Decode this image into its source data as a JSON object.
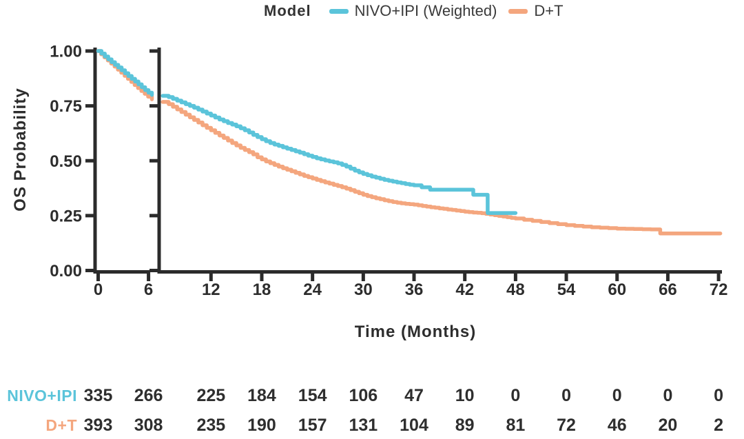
{
  "figure": {
    "legend": {
      "title": "Model",
      "items": [
        {
          "label": "NIVO+IPI (Weighted)",
          "color": "#5bc4da"
        },
        {
          "label": "D+T",
          "color": "#f4a67e"
        }
      ]
    },
    "colors": {
      "axis": "#2b2b2b",
      "text": "#2d2d2d"
    }
  },
  "chart_data": {
    "type": "line",
    "style": "kaplan-meier-step",
    "title": "",
    "xlabel": "Time (Months)",
    "ylabel": "OS Probability",
    "x_ticks": [
      0,
      6,
      12,
      18,
      24,
      30,
      36,
      42,
      48,
      54,
      60,
      66,
      72
    ],
    "x_axis_break_after": 6,
    "y_ticks": [
      0,
      0.25,
      0.5,
      0.75,
      1
    ],
    "y_tick_labels": [
      "0.00",
      "0.25",
      "0.50",
      "0.75",
      "1.00"
    ],
    "ylim": [
      0,
      1
    ],
    "legend_position": "top",
    "grid": false,
    "series": [
      {
        "name": "NIVO+IPI (Weighted)",
        "color": "#5bc4da",
        "segment1": [
          [
            0,
            1.0
          ],
          [
            0.4,
            0.988
          ],
          [
            0.8,
            0.975
          ],
          [
            1.2,
            0.962
          ],
          [
            1.6,
            0.949
          ],
          [
            2,
            0.937
          ],
          [
            2.4,
            0.925
          ],
          [
            2.8,
            0.912
          ],
          [
            3.2,
            0.899
          ],
          [
            3.6,
            0.886
          ],
          [
            4,
            0.873
          ],
          [
            4.4,
            0.861
          ],
          [
            4.8,
            0.848
          ],
          [
            5.2,
            0.835
          ],
          [
            5.6,
            0.822
          ],
          [
            6,
            0.81
          ],
          [
            6.4,
            0.8
          ]
        ],
        "segment2": [
          [
            6.3,
            0.796
          ],
          [
            7,
            0.79
          ],
          [
            7.5,
            0.782
          ],
          [
            8,
            0.774
          ],
          [
            8.5,
            0.766
          ],
          [
            9,
            0.758
          ],
          [
            9.5,
            0.75
          ],
          [
            10,
            0.742
          ],
          [
            10.5,
            0.733
          ],
          [
            11,
            0.724
          ],
          [
            11.5,
            0.715
          ],
          [
            12,
            0.706
          ],
          [
            12.5,
            0.697
          ],
          [
            13,
            0.688
          ],
          [
            13.5,
            0.68
          ],
          [
            14,
            0.672
          ],
          [
            14.5,
            0.665
          ],
          [
            15,
            0.657
          ],
          [
            15.5,
            0.648
          ],
          [
            16,
            0.639
          ],
          [
            16.5,
            0.629
          ],
          [
            17,
            0.618
          ],
          [
            17.5,
            0.608
          ],
          [
            18,
            0.598
          ],
          [
            18.5,
            0.589
          ],
          [
            19,
            0.581
          ],
          [
            19.5,
            0.574
          ],
          [
            20,
            0.568
          ],
          [
            20.5,
            0.561
          ],
          [
            21,
            0.555
          ],
          [
            21.5,
            0.549
          ],
          [
            22,
            0.543
          ],
          [
            22.5,
            0.537
          ],
          [
            23,
            0.53
          ],
          [
            23.5,
            0.523
          ],
          [
            24,
            0.517
          ],
          [
            24.5,
            0.511
          ],
          [
            25,
            0.506
          ],
          [
            25.5,
            0.501
          ],
          [
            26,
            0.497
          ],
          [
            26.5,
            0.493
          ],
          [
            27,
            0.488
          ],
          [
            27.5,
            0.481
          ],
          [
            28,
            0.473
          ],
          [
            28.5,
            0.464
          ],
          [
            29,
            0.455
          ],
          [
            29.5,
            0.447
          ],
          [
            30,
            0.44
          ],
          [
            30.5,
            0.434
          ],
          [
            31,
            0.428
          ],
          [
            31.5,
            0.423
          ],
          [
            32,
            0.418
          ],
          [
            32.5,
            0.413
          ],
          [
            33,
            0.409
          ],
          [
            33.5,
            0.405
          ],
          [
            34,
            0.401
          ],
          [
            34.5,
            0.398
          ],
          [
            35,
            0.394
          ],
          [
            35.5,
            0.391
          ],
          [
            36,
            0.388
          ],
          [
            36.9,
            0.379
          ],
          [
            37.9,
            0.368
          ],
          [
            43,
            0.345
          ],
          [
            44.7,
            0.262
          ],
          [
            48,
            0.262
          ]
        ]
      },
      {
        "name": "D+T",
        "color": "#f4a67e",
        "segment1": [
          [
            0,
            1.0
          ],
          [
            0.35,
            0.985
          ],
          [
            0.75,
            0.971
          ],
          [
            1.15,
            0.957
          ],
          [
            1.55,
            0.943
          ],
          [
            1.95,
            0.929
          ],
          [
            2.35,
            0.915
          ],
          [
            2.75,
            0.901
          ],
          [
            3.15,
            0.887
          ],
          [
            3.55,
            0.873
          ],
          [
            3.95,
            0.859
          ],
          [
            4.35,
            0.845
          ],
          [
            4.75,
            0.831
          ],
          [
            5.15,
            0.818
          ],
          [
            5.55,
            0.805
          ],
          [
            5.95,
            0.792
          ],
          [
            6.4,
            0.78
          ]
        ],
        "segment2": [
          [
            6.3,
            0.768
          ],
          [
            7,
            0.758
          ],
          [
            7.5,
            0.746
          ],
          [
            8,
            0.734
          ],
          [
            8.5,
            0.722
          ],
          [
            9,
            0.71
          ],
          [
            9.5,
            0.698
          ],
          [
            10,
            0.686
          ],
          [
            10.5,
            0.674
          ],
          [
            11,
            0.662
          ],
          [
            11.5,
            0.65
          ],
          [
            12,
            0.639
          ],
          [
            12.5,
            0.627
          ],
          [
            13,
            0.615
          ],
          [
            13.5,
            0.604
          ],
          [
            14,
            0.592
          ],
          [
            14.5,
            0.581
          ],
          [
            15,
            0.57
          ],
          [
            15.5,
            0.559
          ],
          [
            16,
            0.549
          ],
          [
            16.5,
            0.539
          ],
          [
            17,
            0.529
          ],
          [
            17.5,
            0.516
          ],
          [
            18,
            0.506
          ],
          [
            18.5,
            0.497
          ],
          [
            19,
            0.489
          ],
          [
            19.5,
            0.481
          ],
          [
            20,
            0.473
          ],
          [
            20.5,
            0.466
          ],
          [
            21,
            0.459
          ],
          [
            21.5,
            0.452
          ],
          [
            22,
            0.445
          ],
          [
            22.5,
            0.438
          ],
          [
            23,
            0.431
          ],
          [
            23.5,
            0.425
          ],
          [
            24,
            0.419
          ],
          [
            24.5,
            0.413
          ],
          [
            25,
            0.407
          ],
          [
            25.5,
            0.401
          ],
          [
            26,
            0.396
          ],
          [
            26.5,
            0.39
          ],
          [
            27,
            0.385
          ],
          [
            27.5,
            0.379
          ],
          [
            28,
            0.373
          ],
          [
            28.5,
            0.366
          ],
          [
            29,
            0.359
          ],
          [
            29.5,
            0.352
          ],
          [
            30,
            0.345
          ],
          [
            30.5,
            0.339
          ],
          [
            31,
            0.334
          ],
          [
            31.5,
            0.329
          ],
          [
            32,
            0.325
          ],
          [
            32.5,
            0.32
          ],
          [
            33,
            0.316
          ],
          [
            33.5,
            0.312
          ],
          [
            34,
            0.309
          ],
          [
            34.5,
            0.306
          ],
          [
            35,
            0.304
          ],
          [
            35.5,
            0.302
          ],
          [
            36,
            0.3
          ],
          [
            36.5,
            0.297
          ],
          [
            37,
            0.294
          ],
          [
            37.5,
            0.291
          ],
          [
            38,
            0.288
          ],
          [
            38.5,
            0.286
          ],
          [
            39,
            0.283
          ],
          [
            39.5,
            0.281
          ],
          [
            40,
            0.278
          ],
          [
            40.5,
            0.276
          ],
          [
            41,
            0.273
          ],
          [
            41.5,
            0.271
          ],
          [
            42,
            0.268
          ],
          [
            42.5,
            0.266
          ],
          [
            43,
            0.264
          ],
          [
            43.5,
            0.263
          ],
          [
            44,
            0.261
          ],
          [
            44.5,
            0.258
          ],
          [
            45,
            0.255
          ],
          [
            45.5,
            0.252
          ],
          [
            46,
            0.249
          ],
          [
            46.5,
            0.246
          ],
          [
            47,
            0.243
          ],
          [
            47.5,
            0.24
          ],
          [
            48,
            0.237
          ],
          [
            49,
            0.231
          ],
          [
            50,
            0.226
          ],
          [
            51,
            0.221
          ],
          [
            52,
            0.216
          ],
          [
            53,
            0.211
          ],
          [
            54,
            0.207
          ],
          [
            55,
            0.203
          ],
          [
            56,
            0.2
          ],
          [
            57,
            0.197
          ],
          [
            58,
            0.195
          ],
          [
            59,
            0.193
          ],
          [
            60,
            0.191
          ],
          [
            61,
            0.19
          ],
          [
            62,
            0.189
          ],
          [
            63,
            0.188
          ],
          [
            64,
            0.187
          ],
          [
            65.1,
            0.169
          ],
          [
            72.2,
            0.169
          ]
        ]
      }
    ]
  },
  "risk_table": {
    "columns_months": [
      0,
      6,
      12,
      18,
      24,
      30,
      36,
      42,
      48,
      54,
      60,
      66,
      72
    ],
    "rows": [
      {
        "label": "NIVO+IPI",
        "color": "#5bc4da",
        "values": [
          "335",
          "266",
          "225",
          "184",
          "154",
          "106",
          "47",
          "10",
          "0",
          "0",
          "0",
          "0",
          "0"
        ]
      },
      {
        "label": "D+T",
        "color": "#f4a67e",
        "values": [
          "393",
          "308",
          "235",
          "190",
          "157",
          "131",
          "104",
          "89",
          "81",
          "72",
          "46",
          "20",
          "2"
        ]
      }
    ]
  }
}
